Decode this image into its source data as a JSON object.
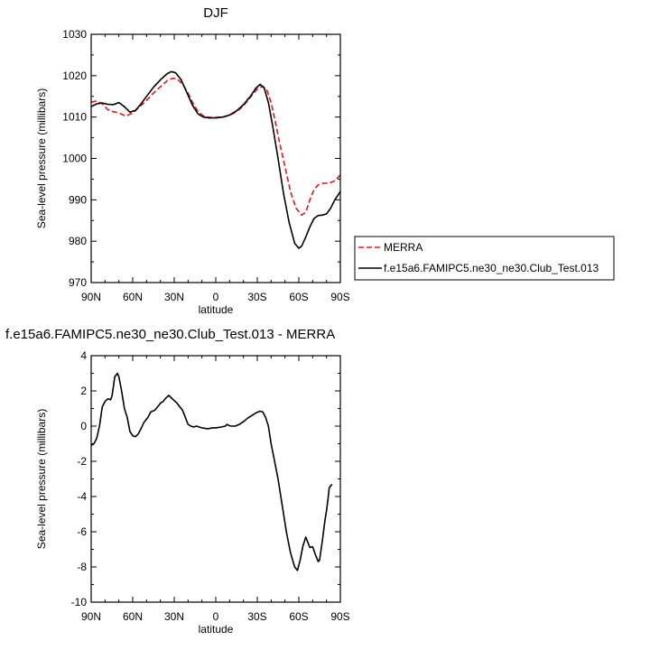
{
  "chart_data": [
    {
      "type": "line",
      "title": "DJF",
      "xlabel": "latitude",
      "ylabel": "Sea-level pressure (millibars)",
      "xlim": [
        90,
        -90
      ],
      "ylim": [
        970,
        1030
      ],
      "grid": false,
      "legend_position": "right",
      "x_ticks": [
        {
          "value": 90,
          "label": "90N"
        },
        {
          "value": 60,
          "label": "60N"
        },
        {
          "value": 30,
          "label": "30N"
        },
        {
          "value": 0,
          "label": "0"
        },
        {
          "value": -30,
          "label": "30S"
        },
        {
          "value": -60,
          "label": "60S"
        },
        {
          "value": -90,
          "label": "90S"
        }
      ],
      "y_ticks": [
        {
          "value": 970,
          "label": "970"
        },
        {
          "value": 980,
          "label": "980"
        },
        {
          "value": 990,
          "label": "990"
        },
        {
          "value": 1000,
          "label": "1000"
        },
        {
          "value": 1010,
          "label": "1010"
        },
        {
          "value": 1020,
          "label": "1020"
        },
        {
          "value": 1030,
          "label": "1030"
        }
      ],
      "series": [
        {
          "name": "MERRA",
          "color": "#e8141c",
          "dash": "dashed",
          "points": [
            [
              90,
              1013.6
            ],
            [
              86,
              1013.9
            ],
            [
              82,
              1013.2
            ],
            [
              78,
              1011.8
            ],
            [
              74,
              1011.3
            ],
            [
              70,
              1011.0
            ],
            [
              65,
              1010.2
            ],
            [
              60,
              1011.0
            ],
            [
              55,
              1012.5
            ],
            [
              50,
              1014.0
            ],
            [
              45,
              1015.8
            ],
            [
              40,
              1017.3
            ],
            [
              35,
              1018.8
            ],
            [
              31,
              1019.4
            ],
            [
              28,
              1019.2
            ],
            [
              24,
              1018.0
            ],
            [
              20,
              1015.8
            ],
            [
              16,
              1013.0
            ],
            [
              12,
              1011.0
            ],
            [
              8,
              1010.1
            ],
            [
              4,
              1009.9
            ],
            [
              0,
              1009.9
            ],
            [
              -5,
              1010.0
            ],
            [
              -10,
              1010.4
            ],
            [
              -15,
              1011.3
            ],
            [
              -20,
              1012.7
            ],
            [
              -25,
              1014.8
            ],
            [
              -30,
              1016.8
            ],
            [
              -34,
              1017.5
            ],
            [
              -37,
              1016.5
            ],
            [
              -40,
              1013.5
            ],
            [
              -43,
              1009.0
            ],
            [
              -46,
              1004.0
            ],
            [
              -50,
              998.0
            ],
            [
              -54,
              992.0
            ],
            [
              -58,
              988.0
            ],
            [
              -62,
              986.3
            ],
            [
              -65,
              987.0
            ],
            [
              -68,
              990.0
            ],
            [
              -71,
              992.5
            ],
            [
              -74,
              993.6
            ],
            [
              -78,
              994.0
            ],
            [
              -82,
              994.0
            ],
            [
              -86,
              994.6
            ],
            [
              -90,
              996.0
            ]
          ]
        },
        {
          "name": "f.e15a6.FAMIPC5.ne30_ne30.Club_Test.013",
          "color": "#000000",
          "dash": "solid",
          "points": [
            [
              90,
              1012.5
            ],
            [
              86,
              1013.2
            ],
            [
              82,
              1013.4
            ],
            [
              78,
              1013.1
            ],
            [
              74,
              1013.0
            ],
            [
              70,
              1013.5
            ],
            [
              66,
              1012.5
            ],
            [
              62,
              1011.2
            ],
            [
              58,
              1011.6
            ],
            [
              54,
              1013.2
            ],
            [
              50,
              1015.0
            ],
            [
              45,
              1017.2
            ],
            [
              40,
              1019.0
            ],
            [
              35,
              1020.5
            ],
            [
              32,
              1021.0
            ],
            [
              29,
              1020.7
            ],
            [
              25,
              1019.0
            ],
            [
              21,
              1016.0
            ],
            [
              17,
              1013.0
            ],
            [
              13,
              1010.8
            ],
            [
              9,
              1010.0
            ],
            [
              5,
              1009.8
            ],
            [
              0,
              1009.8
            ],
            [
              -5,
              1010.0
            ],
            [
              -10,
              1010.5
            ],
            [
              -15,
              1011.5
            ],
            [
              -20,
              1013.0
            ],
            [
              -25,
              1015.0
            ],
            [
              -29,
              1017.0
            ],
            [
              -32,
              1017.9
            ],
            [
              -35,
              1017.0
            ],
            [
              -38,
              1013.5
            ],
            [
              -41,
              1008.0
            ],
            [
              -45,
              1000.0
            ],
            [
              -49,
              991.5
            ],
            [
              -53,
              984.5
            ],
            [
              -57,
              979.5
            ],
            [
              -60,
              978.3
            ],
            [
              -62,
              978.8
            ],
            [
              -65,
              981.0
            ],
            [
              -68,
              983.5
            ],
            [
              -71,
              985.5
            ],
            [
              -74,
              986.2
            ],
            [
              -77,
              986.3
            ],
            [
              -80,
              986.6
            ],
            [
              -83,
              988.0
            ],
            [
              -86,
              990.0
            ],
            [
              -90,
              992.0
            ]
          ]
        }
      ]
    },
    {
      "type": "line",
      "title": "f.e15a6.FAMIPC5.ne30_ne30.Club_Test.013 - MERRA",
      "xlabel": "latitude",
      "ylabel": "Sea-level pressure (millibars)",
      "xlim": [
        90,
        -90
      ],
      "ylim": [
        -10,
        4
      ],
      "grid": false,
      "x_ticks": [
        {
          "value": 90,
          "label": "90N"
        },
        {
          "value": 60,
          "label": "60N"
        },
        {
          "value": 30,
          "label": "30N"
        },
        {
          "value": 0,
          "label": "0"
        },
        {
          "value": -30,
          "label": "30S"
        },
        {
          "value": -60,
          "label": "60S"
        },
        {
          "value": -90,
          "label": "90S"
        }
      ],
      "y_ticks": [
        {
          "value": -10,
          "label": "-10"
        },
        {
          "value": -8,
          "label": "-8"
        },
        {
          "value": -6,
          "label": "-6"
        },
        {
          "value": -4,
          "label": "-4"
        },
        {
          "value": -2,
          "label": "-2"
        },
        {
          "value": 0,
          "label": "0"
        },
        {
          "value": 2,
          "label": "2"
        },
        {
          "value": 4,
          "label": "4"
        }
      ],
      "series": [
        {
          "color": "#000000",
          "dash": "solid",
          "points": [
            [
              90,
              -1.1
            ],
            [
              88,
              -1.0
            ],
            [
              86,
              -0.7
            ],
            [
              84,
              0.0
            ],
            [
              82,
              1.1
            ],
            [
              80,
              1.4
            ],
            [
              78,
              1.55
            ],
            [
              76,
              1.5
            ],
            [
              75,
              1.7
            ],
            [
              74,
              2.2
            ],
            [
              73,
              2.8
            ],
            [
              71,
              3.0
            ],
            [
              70,
              2.8
            ],
            [
              68,
              2.0
            ],
            [
              66,
              1.0
            ],
            [
              64,
              0.5
            ],
            [
              62,
              -0.3
            ],
            [
              60,
              -0.55
            ],
            [
              58,
              -0.6
            ],
            [
              56,
              -0.45
            ],
            [
              54,
              -0.15
            ],
            [
              52,
              0.2
            ],
            [
              49,
              0.5
            ],
            [
              47,
              0.8
            ],
            [
              44,
              0.9
            ],
            [
              42,
              1.1
            ],
            [
              40,
              1.3
            ],
            [
              38,
              1.4
            ],
            [
              36,
              1.6
            ],
            [
              34,
              1.75
            ],
            [
              32,
              1.6
            ],
            [
              30,
              1.45
            ],
            [
              28,
              1.3
            ],
            [
              26,
              1.1
            ],
            [
              24,
              0.9
            ],
            [
              22,
              0.5
            ],
            [
              20,
              0.1
            ],
            [
              18,
              0.0
            ],
            [
              16,
              -0.05
            ],
            [
              14,
              0.0
            ],
            [
              12,
              -0.05
            ],
            [
              10,
              -0.1
            ],
            [
              6,
              -0.15
            ],
            [
              2,
              -0.1
            ],
            [
              0,
              -0.1
            ],
            [
              -4,
              -0.05
            ],
            [
              -7,
              0.0
            ],
            [
              -8,
              0.1
            ],
            [
              -9,
              0.05
            ],
            [
              -11,
              0.0
            ],
            [
              -14,
              0.0
            ],
            [
              -17,
              0.1
            ],
            [
              -20,
              0.25
            ],
            [
              -23,
              0.45
            ],
            [
              -26,
              0.6
            ],
            [
              -29,
              0.75
            ],
            [
              -32,
              0.85
            ],
            [
              -34,
              0.8
            ],
            [
              -36,
              0.5
            ],
            [
              -38,
              0.0
            ],
            [
              -40,
              -1.0
            ],
            [
              -42,
              -1.8
            ],
            [
              -45,
              -3.0
            ],
            [
              -48,
              -4.5
            ],
            [
              -51,
              -6.0
            ],
            [
              -54,
              -7.2
            ],
            [
              -57,
              -8.0
            ],
            [
              -59,
              -8.2
            ],
            [
              -61,
              -7.6
            ],
            [
              -63,
              -6.8
            ],
            [
              -65,
              -6.3
            ],
            [
              -66,
              -6.5
            ],
            [
              -68,
              -6.9
            ],
            [
              -70,
              -6.85
            ],
            [
              -72,
              -7.3
            ],
            [
              -74,
              -7.7
            ],
            [
              -75,
              -7.6
            ],
            [
              -77,
              -6.5
            ],
            [
              -79,
              -5.3
            ],
            [
              -80,
              -4.8
            ],
            [
              -81,
              -4.2
            ],
            [
              -82,
              -3.5
            ],
            [
              -84,
              -3.3
            ]
          ]
        }
      ]
    }
  ]
}
